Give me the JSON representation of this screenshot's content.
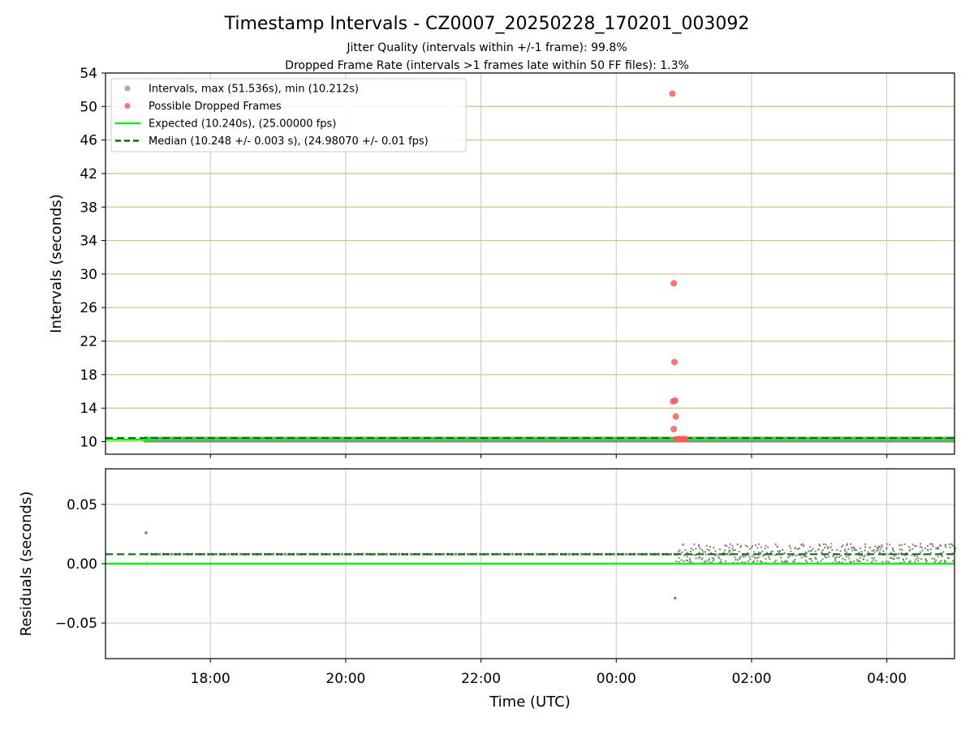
{
  "chart_data": [
    {
      "type": "scatter",
      "panel": "top",
      "title": "Timestamp Intervals - CZ0007_20250228_170201_003092",
      "subtitle_lines": [
        "Jitter Quality (intervals within +/-1 frame): 99.8%",
        "Dropped Frame Rate (intervals >1 frames late within 50 FF files): 1.3%"
      ],
      "ylabel": "Intervals (seconds)",
      "xlabel": "",
      "xlim_hours": [
        16.45,
        29.0
      ],
      "ylim": [
        8.5,
        54
      ],
      "yticks": [
        10,
        14,
        18,
        22,
        26,
        30,
        34,
        38,
        42,
        46,
        50,
        54
      ],
      "grid": true,
      "legend_position": "upper-left",
      "legend": [
        {
          "label": "Intervals, max (51.536s), min (10.212s)",
          "kind": "marker",
          "color": "#9e9e9e"
        },
        {
          "label": "Possible Dropped Frames",
          "kind": "marker",
          "color": "#ff5a5a"
        },
        {
          "label": "Expected (10.240s), (25.00000 fps)",
          "kind": "line",
          "color": "#1aeb1a"
        },
        {
          "label": "Median (10.248 +/- 0.003 s), (24.98070 +/- 0.01 fps)",
          "kind": "dash",
          "color": "#0a6e0a"
        }
      ],
      "series": [
        {
          "name": "Intervals, max (51.536s), min (10.212s)",
          "x_hours": [
            17.05,
            29.0
          ],
          "y": [
            10.248,
            10.248
          ],
          "style": "band"
        },
        {
          "name": "Possible Dropped Frames",
          "x_hours": [
            24.83,
            24.85,
            24.86,
            24.84,
            24.87,
            24.88,
            24.85,
            24.9,
            24.92,
            24.95,
            24.98,
            25.0,
            25.02
          ],
          "y": [
            51.536,
            28.9,
            19.5,
            14.8,
            14.9,
            13.0,
            11.5,
            10.3,
            10.3,
            10.3,
            10.3,
            10.3,
            10.3
          ]
        },
        {
          "name": "Expected (10.240s), (25.00000 fps)",
          "y": 10.24
        },
        {
          "name": "Median (10.248 +/- 0.003 s), (24.98070 +/- 0.01 fps)",
          "y": 10.248
        }
      ]
    },
    {
      "type": "scatter",
      "panel": "bottom",
      "ylabel": "Residuals (seconds)",
      "xlabel": "Time (UTC)",
      "xlim_hours": [
        16.45,
        29.0
      ],
      "ylim": [
        -0.08,
        0.08
      ],
      "yticks": [
        0.05,
        0.0,
        -0.05
      ],
      "ytick_labels": [
        "0.05",
        "0.00",
        "−0.05"
      ],
      "xticks_hours": [
        18,
        20,
        22,
        24,
        26,
        28
      ],
      "xtick_labels": [
        "18:00",
        "20:00",
        "22:00",
        "00:00",
        "02:00",
        "04:00"
      ],
      "grid": true,
      "series": [
        {
          "name": "residuals",
          "x_hours": [
            17.05,
            29.0
          ],
          "y": [
            0.008,
            0.008
          ],
          "spread_after_hour": 24.87,
          "spread_range": [
            0.0,
            0.017
          ]
        },
        {
          "name": "outliers",
          "x_hours": [
            17.05,
            17.06,
            24.87
          ],
          "y": [
            0.026,
            0.0,
            -0.029
          ]
        },
        {
          "name": "expected",
          "y": 0.0
        },
        {
          "name": "median",
          "y": 0.008
        }
      ]
    }
  ],
  "colors": {
    "gray_marker": "#808080",
    "red_marker": "#ff5a5a",
    "expected": "#1aeb1a",
    "median": "#0a6e0a",
    "top_grid": "#d4c490",
    "grid": "#c8c8c8"
  }
}
